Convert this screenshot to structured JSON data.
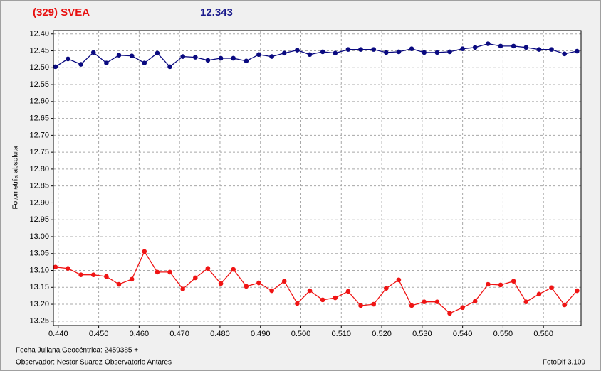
{
  "chart_data": {
    "type": "line",
    "title": "(329) SVEA",
    "subtitle": "12.343",
    "y_label": "Fotometría absoluta",
    "x_label": "Fecha Juliana Geocéntrica: 2459385 +",
    "annotations": [
      "Observador: Nestor Suarez-Observatorio Antares",
      "FotoDif 3.109"
    ],
    "x": [
      0.4393,
      0.4424,
      0.4456,
      0.4487,
      0.4519,
      0.455,
      0.4582,
      0.4613,
      0.4645,
      0.4676,
      0.4708,
      0.4739,
      0.477,
      0.4802,
      0.4833,
      0.4865,
      0.4896,
      0.4928,
      0.4959,
      0.4991,
      0.5022,
      0.5054,
      0.5085,
      0.5117,
      0.5148,
      0.518,
      0.5211,
      0.5242,
      0.5274,
      0.5305,
      0.5337,
      0.5368,
      0.54,
      0.5431,
      0.5463,
      0.5494,
      0.5526,
      0.5557,
      0.5589,
      0.562,
      0.5652,
      0.5683
    ],
    "series": [
      {
        "color": "#0a0a80",
        "values": [
          12.497,
          12.474,
          12.49,
          12.455,
          12.486,
          12.463,
          12.465,
          12.486,
          12.457,
          12.497,
          12.467,
          12.469,
          12.478,
          12.472,
          12.472,
          12.48,
          12.461,
          12.467,
          12.457,
          12.448,
          12.461,
          12.453,
          12.457,
          12.446,
          12.446,
          12.446,
          12.455,
          12.453,
          12.444,
          12.455,
          12.455,
          12.453,
          12.444,
          12.44,
          12.429,
          12.436,
          12.436,
          12.44,
          12.446,
          12.446,
          12.459,
          12.451
        ]
      },
      {
        "color": "#f01414",
        "values": [
          13.09,
          13.094,
          13.113,
          13.113,
          13.118,
          13.141,
          13.126,
          13.044,
          13.105,
          13.105,
          13.155,
          13.122,
          13.094,
          13.139,
          13.097,
          13.147,
          13.137,
          13.16,
          13.132,
          13.198,
          13.16,
          13.187,
          13.181,
          13.162,
          13.204,
          13.2,
          13.153,
          13.128,
          13.204,
          13.193,
          13.193,
          13.227,
          13.21,
          13.191,
          13.141,
          13.143,
          13.132,
          13.193,
          13.17,
          13.151,
          13.202,
          13.16
        ]
      }
    ],
    "xlim": [
      0.4388,
      0.5693
    ],
    "ylim": [
      12.39,
      13.263
    ],
    "y_inverted": true,
    "xticks": [
      {
        "value": 0.44,
        "label": "0.440"
      },
      {
        "value": 0.45,
        "label": "0.450"
      },
      {
        "value": 0.46,
        "label": "0.460"
      },
      {
        "value": 0.47,
        "label": "0.470"
      },
      {
        "value": 0.48,
        "label": "0.480"
      },
      {
        "value": 0.49,
        "label": "0.490"
      },
      {
        "value": 0.5,
        "label": "0.500"
      },
      {
        "value": 0.51,
        "label": "0.510"
      },
      {
        "value": 0.52,
        "label": "0.520"
      },
      {
        "value": 0.53,
        "label": "0.530"
      },
      {
        "value": 0.54,
        "label": "0.540"
      },
      {
        "value": 0.55,
        "label": "0.550"
      },
      {
        "value": 0.56,
        "label": "0.560"
      }
    ],
    "yticks": [
      {
        "value": 12.4,
        "label": "12.40"
      },
      12.45,
      {
        "value": 12.5,
        "label": "12.50"
      },
      12.55,
      {
        "value": 12.6,
        "label": "12.60"
      },
      12.65,
      {
        "value": 12.7,
        "label": "12.70"
      },
      12.75,
      {
        "value": 12.8,
        "label": "12.80"
      },
      12.85,
      {
        "value": 12.9,
        "label": "12.90"
      },
      12.95,
      {
        "value": 13,
        "label": "13.00"
      },
      13.05,
      {
        "value": 13.1,
        "label": "13.10"
      },
      13.15,
      {
        "value": 13.2,
        "label": "13.20"
      },
      13.25
    ],
    "grid": true
  }
}
